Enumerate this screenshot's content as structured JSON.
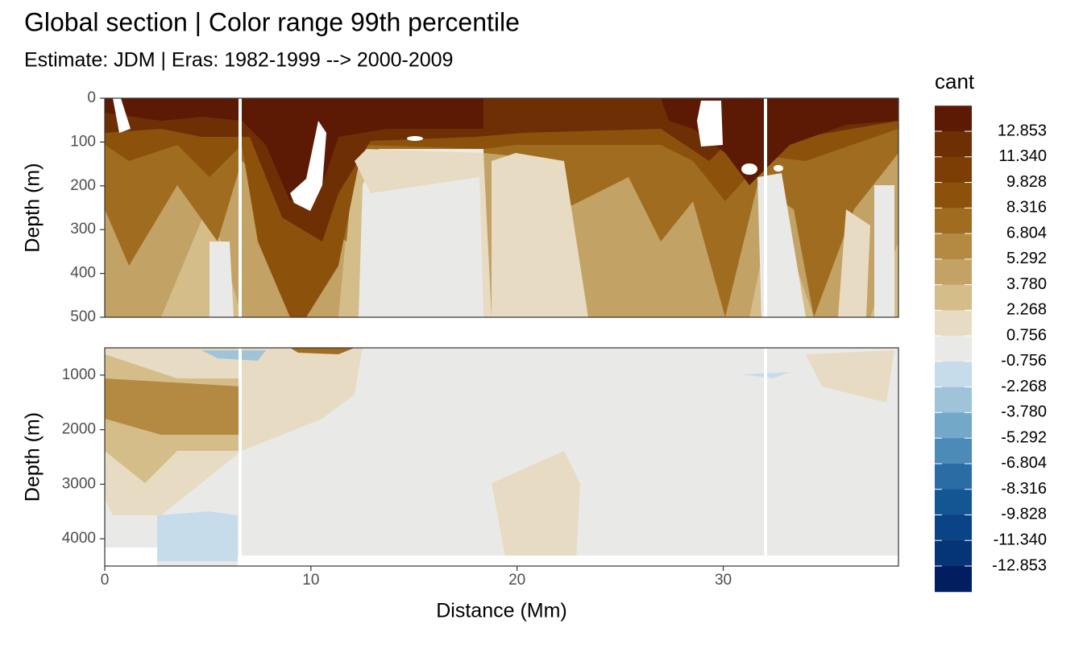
{
  "chart_data": {
    "type": "contour",
    "title": "Global section | Color range 99th percentile",
    "subtitle": "Estimate: JDM  | Eras: 1982-1999 --> 2000-2009",
    "x_label": "Distance (Mm)",
    "xlim": [
      0,
      38.5
    ],
    "xticks": [
      0,
      10,
      20,
      30
    ],
    "grid": true,
    "panels": [
      {
        "y_label": "Depth (m)",
        "ylim": [
          0,
          500
        ],
        "y_reversed": true,
        "yticks": [
          0,
          100,
          200,
          300,
          400,
          500
        ]
      },
      {
        "y_label": "Depth (m)",
        "ylim": [
          500,
          4500
        ],
        "y_reversed": true,
        "yticks": [
          1000,
          2000,
          3000,
          4000
        ]
      }
    ],
    "legend": {
      "title": "cant",
      "breaks": [
        12.853,
        {
          "value": 11.34,
          "label": "11.340"
        },
        9.828,
        8.316,
        6.804,
        5.292,
        {
          "value": 3.78,
          "label": "3.780"
        },
        2.268,
        0.756,
        -0.756,
        -2.268,
        {
          "value": -3.78,
          "label": "-3.780"
        },
        -5.292,
        -6.804,
        -8.316,
        -9.828,
        {
          "value": -11.34,
          "label": "-11.340"
        },
        -12.853
      ],
      "colors": [
        "#5c1a04",
        "#6f2f05",
        "#7d3e06",
        "#8c520c",
        "#a06d20",
        "#b48a42",
        "#c3a266",
        "#d5bd8a",
        "#e8dbc3",
        "#e9eae8",
        "#c7dcea",
        "#9fc4d9",
        "#73a8c8",
        "#4c8ab7",
        "#2a6da4",
        "#145694",
        "#0a4487",
        "#053477",
        "#021e60"
      ]
    }
  }
}
